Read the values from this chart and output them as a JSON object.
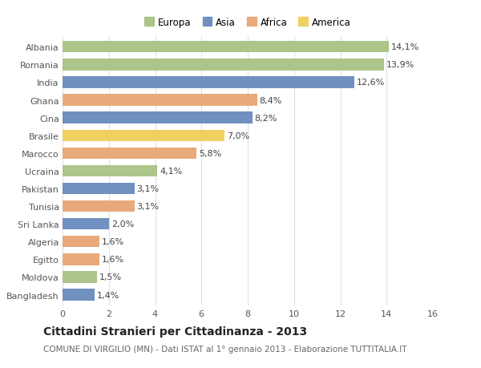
{
  "categories": [
    "Albania",
    "Romania",
    "India",
    "Ghana",
    "Cina",
    "Brasile",
    "Marocco",
    "Ucraina",
    "Pakistan",
    "Tunisia",
    "Sri Lanka",
    "Algeria",
    "Egitto",
    "Moldova",
    "Bangladesh"
  ],
  "values": [
    14.1,
    13.9,
    12.6,
    8.4,
    8.2,
    7.0,
    5.8,
    4.1,
    3.1,
    3.1,
    2.0,
    1.6,
    1.6,
    1.5,
    1.4
  ],
  "labels": [
    "14,1%",
    "13,9%",
    "12,6%",
    "8,4%",
    "8,2%",
    "7,0%",
    "5,8%",
    "4,1%",
    "3,1%",
    "3,1%",
    "2,0%",
    "1,6%",
    "1,6%",
    "1,5%",
    "1,4%"
  ],
  "colors": [
    "#adc48a",
    "#adc48a",
    "#7090c0",
    "#e8aa7a",
    "#7090c0",
    "#f0d060",
    "#e8aa7a",
    "#adc48a",
    "#7090c0",
    "#e8aa7a",
    "#7090c0",
    "#e8aa7a",
    "#e8aa7a",
    "#adc48a",
    "#7090c0"
  ],
  "legend_labels": [
    "Europa",
    "Asia",
    "Africa",
    "America"
  ],
  "legend_colors": [
    "#adc48a",
    "#7090c0",
    "#e8aa7a",
    "#f0d060"
  ],
  "title": "Cittadini Stranieri per Cittadinanza - 2013",
  "subtitle": "COMUNE DI VIRGILIO (MN) - Dati ISTAT al 1° gennaio 2013 - Elaborazione TUTTITALIA.IT",
  "xlim": [
    0,
    16
  ],
  "xticks": [
    0,
    2,
    4,
    6,
    8,
    10,
    12,
    14,
    16
  ],
  "background_color": "#ffffff",
  "plot_bg_color": "#ffffff",
  "grid_color": "#e0e0e0",
  "bar_height": 0.65,
  "title_fontsize": 10,
  "subtitle_fontsize": 7.5,
  "tick_fontsize": 8,
  "label_fontsize": 8,
  "legend_fontsize": 8.5
}
